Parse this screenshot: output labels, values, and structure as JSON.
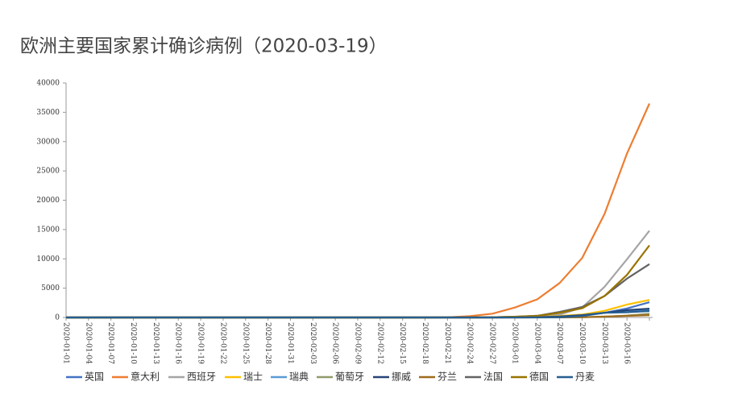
{
  "chart_data": {
    "type": "line",
    "title": "欧洲主要国家累计确诊病例（2020-03-19）",
    "categories": [
      "2020-01-01",
      "2020-01-04",
      "2020-01-07",
      "2020-01-10",
      "2020-01-13",
      "2020-01-16",
      "2020-01-19",
      "2020-01-22",
      "2020-01-25",
      "2020-01-28",
      "2020-01-31",
      "2020-02-03",
      "2020-02-06",
      "2020-02-09",
      "2020-02-12",
      "2020-02-15",
      "2020-02-18",
      "2020-02-21",
      "2020-02-24",
      "2020-02-27",
      "2020-03-01",
      "2020-03-04",
      "2020-03-07",
      "2020-03-10",
      "2020-03-13",
      "2020-03-16",
      null
    ],
    "ylim": [
      0,
      40000
    ],
    "yticks": [
      0,
      5000,
      10000,
      15000,
      20000,
      25000,
      30000,
      35000,
      40000
    ],
    "grid": false,
    "series": [
      {
        "name": "英国",
        "color": "#4472c4",
        "values": [
          0,
          0,
          0,
          0,
          0,
          0,
          0,
          0,
          0,
          0,
          0,
          0,
          0,
          0,
          0,
          0,
          0,
          9,
          13,
          15,
          36,
          87,
          206,
          373,
          798,
          1543,
          2600
        ]
      },
      {
        "name": "意大利",
        "color": "#ed7d31",
        "values": [
          0,
          0,
          0,
          0,
          0,
          0,
          0,
          0,
          0,
          0,
          0,
          0,
          0,
          0,
          0,
          0,
          0,
          20,
          229,
          650,
          1694,
          3089,
          5883,
          10149,
          17660,
          27980,
          36500
        ]
      },
      {
        "name": "西班牙",
        "color": "#a5a5a5",
        "values": [
          0,
          0,
          0,
          0,
          0,
          0,
          0,
          0,
          0,
          0,
          0,
          0,
          0,
          0,
          0,
          0,
          0,
          0,
          2,
          23,
          84,
          222,
          500,
          1695,
          5232,
          9942,
          14800
        ]
      },
      {
        "name": "瑞士",
        "color": "#ffc000",
        "values": [
          0,
          0,
          0,
          0,
          0,
          0,
          0,
          0,
          0,
          0,
          0,
          0,
          0,
          0,
          0,
          0,
          0,
          0,
          0,
          8,
          27,
          56,
          268,
          491,
          1139,
          2200,
          3000
        ]
      },
      {
        "name": "瑞典",
        "color": "#5b9bd5",
        "values": [
          0,
          0,
          0,
          0,
          0,
          0,
          0,
          0,
          0,
          0,
          0,
          0,
          0,
          0,
          0,
          0,
          0,
          1,
          1,
          7,
          14,
          52,
          161,
          355,
          814,
          1103,
          1300
        ]
      },
      {
        "name": "葡萄牙",
        "color": "#8f9a6b",
        "values": [
          0,
          0,
          0,
          0,
          0,
          0,
          0,
          0,
          0,
          0,
          0,
          0,
          0,
          0,
          0,
          0,
          0,
          0,
          0,
          0,
          0,
          5,
          21,
          41,
          112,
          331,
          650
        ]
      },
      {
        "name": "挪威",
        "color": "#264478",
        "values": [
          0,
          0,
          0,
          0,
          0,
          0,
          0,
          0,
          0,
          0,
          0,
          0,
          0,
          0,
          0,
          0,
          0,
          0,
          0,
          1,
          19,
          56,
          147,
          400,
          800,
          1256,
          1500
        ]
      },
      {
        "name": "芬兰",
        "color": "#9e6b1a",
        "values": [
          0,
          0,
          0,
          0,
          0,
          0,
          0,
          0,
          0,
          0,
          0,
          0,
          0,
          0,
          0,
          0,
          0,
          1,
          1,
          2,
          2,
          7,
          19,
          40,
          155,
          272,
          400
        ]
      },
      {
        "name": "法国",
        "color": "#636363",
        "values": [
          0,
          0,
          0,
          0,
          0,
          0,
          0,
          0,
          0,
          0,
          0,
          0,
          0,
          0,
          0,
          0,
          0,
          12,
          12,
          38,
          130,
          285,
          949,
          1784,
          3661,
          6633,
          9100
        ]
      },
      {
        "name": "德国",
        "color": "#997300",
        "values": [
          0,
          0,
          0,
          0,
          0,
          0,
          0,
          0,
          0,
          0,
          0,
          0,
          0,
          0,
          0,
          0,
          0,
          16,
          16,
          46,
          130,
          262,
          795,
          1565,
          3675,
          7272,
          12300
        ]
      },
      {
        "name": "丹麦",
        "color": "#255e91",
        "values": [
          0,
          0,
          0,
          0,
          0,
          0,
          0,
          0,
          0,
          0,
          0,
          0,
          0,
          0,
          0,
          0,
          0,
          0,
          0,
          1,
          3,
          10,
          23,
          262,
          801,
          898,
          1100
        ]
      }
    ]
  }
}
